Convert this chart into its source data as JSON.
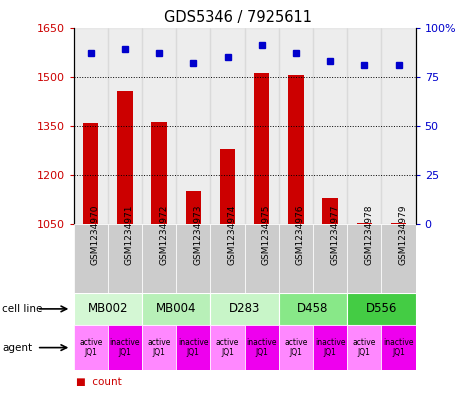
{
  "title": "GDS5346 / 7925611",
  "samples": [
    "GSM1234970",
    "GSM1234971",
    "GSM1234972",
    "GSM1234973",
    "GSM1234974",
    "GSM1234975",
    "GSM1234976",
    "GSM1234977",
    "GSM1234978",
    "GSM1234979"
  ],
  "counts": [
    1358,
    1455,
    1360,
    1150,
    1280,
    1510,
    1505,
    1130,
    1052,
    1052
  ],
  "percentiles": [
    87,
    89,
    87,
    82,
    85,
    91,
    87,
    83,
    81,
    81
  ],
  "ylim_left": [
    1050,
    1650
  ],
  "ylim_right": [
    0,
    100
  ],
  "yticks_left": [
    1050,
    1200,
    1350,
    1500,
    1650
  ],
  "ytick_labels_left": [
    "1050",
    "1200",
    "1350",
    "1500",
    "1650"
  ],
  "yticks_right": [
    0,
    25,
    50,
    75,
    100
  ],
  "ytick_labels_right": [
    "0",
    "25",
    "50",
    "75",
    "100%"
  ],
  "bar_color": "#cc0000",
  "dot_color": "#0000cc",
  "cell_lines": [
    {
      "label": "MB002",
      "cols": [
        0,
        1
      ],
      "color": "#d4f7d4"
    },
    {
      "label": "MB004",
      "cols": [
        2,
        3
      ],
      "color": "#b8f0b8"
    },
    {
      "label": "D283",
      "cols": [
        4,
        5
      ],
      "color": "#c8f5c8"
    },
    {
      "label": "D458",
      "cols": [
        6,
        7
      ],
      "color": "#88e888"
    },
    {
      "label": "D556",
      "cols": [
        8,
        9
      ],
      "color": "#44cc44"
    }
  ],
  "agents": [
    "active\nJQ1",
    "inactive\nJQ1",
    "active\nJQ1",
    "inactive\nJQ1",
    "active\nJQ1",
    "inactive\nJQ1",
    "active\nJQ1",
    "inactive\nJQ1",
    "active\nJQ1",
    "inactive\nJQ1"
  ],
  "agent_active_color": "#ff88ff",
  "agent_inactive_color": "#ee00ee",
  "background_color": "#ffffff",
  "sample_bg_color": "#cccccc",
  "grid_yticks": [
    1200,
    1350,
    1500
  ]
}
